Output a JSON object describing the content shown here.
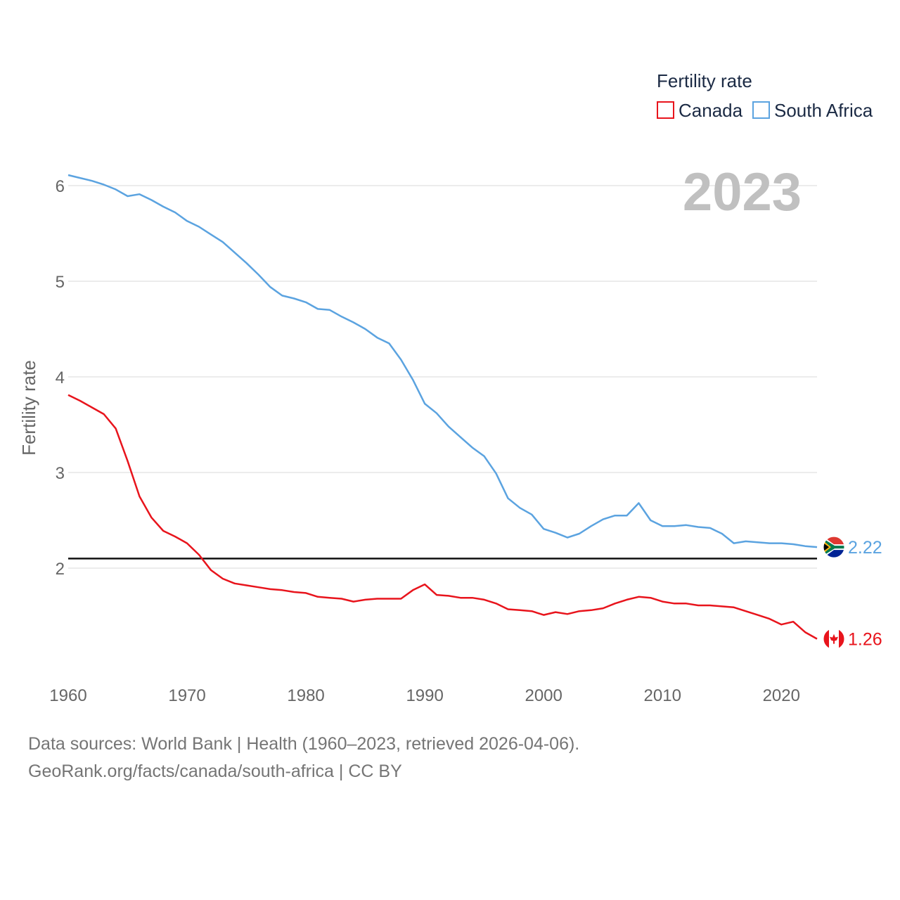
{
  "chart_data": {
    "type": "line",
    "title": "",
    "xlabel": "",
    "ylabel": "Fertility rate",
    "xlim": [
      1960,
      2023
    ],
    "ylim": [
      0.9,
      6.3
    ],
    "y_ticks": [
      2,
      3,
      4,
      5,
      6
    ],
    "x_ticks": [
      1960,
      1970,
      1980,
      1990,
      2000,
      2010,
      2020
    ],
    "grid": true,
    "reference_line": 2.1,
    "year_label": "2023",
    "legend": {
      "title": "Fertility rate",
      "position": "top-right"
    },
    "x": [
      1960,
      1961,
      1962,
      1963,
      1964,
      1965,
      1966,
      1967,
      1968,
      1969,
      1970,
      1971,
      1972,
      1973,
      1974,
      1975,
      1976,
      1977,
      1978,
      1979,
      1980,
      1981,
      1982,
      1983,
      1984,
      1985,
      1986,
      1987,
      1988,
      1989,
      1990,
      1991,
      1992,
      1993,
      1994,
      1995,
      1996,
      1997,
      1998,
      1999,
      2000,
      2001,
      2002,
      2003,
      2004,
      2005,
      2006,
      2007,
      2008,
      2009,
      2010,
      2011,
      2012,
      2013,
      2014,
      2015,
      2016,
      2017,
      2018,
      2019,
      2020,
      2021,
      2022,
      2023
    ],
    "series": [
      {
        "name": "Canada",
        "color": "#e8141c",
        "end_label": "1.26",
        "values": [
          3.81,
          3.75,
          3.68,
          3.61,
          3.46,
          3.12,
          2.75,
          2.53,
          2.39,
          2.33,
          2.26,
          2.14,
          1.98,
          1.89,
          1.84,
          1.82,
          1.8,
          1.78,
          1.77,
          1.75,
          1.74,
          1.7,
          1.69,
          1.68,
          1.65,
          1.67,
          1.68,
          1.68,
          1.68,
          1.77,
          1.83,
          1.72,
          1.71,
          1.69,
          1.69,
          1.67,
          1.63,
          1.57,
          1.56,
          1.55,
          1.51,
          1.54,
          1.52,
          1.55,
          1.56,
          1.58,
          1.63,
          1.67,
          1.7,
          1.69,
          1.65,
          1.63,
          1.63,
          1.61,
          1.61,
          1.6,
          1.59,
          1.55,
          1.51,
          1.47,
          1.41,
          1.44,
          1.33,
          1.26
        ]
      },
      {
        "name": "South Africa",
        "color": "#5ba3e0",
        "end_label": "2.22",
        "values": [
          6.11,
          6.08,
          6.05,
          6.01,
          5.96,
          5.89,
          5.91,
          5.85,
          5.78,
          5.72,
          5.63,
          5.57,
          5.49,
          5.41,
          5.3,
          5.19,
          5.07,
          4.94,
          4.85,
          4.82,
          4.78,
          4.71,
          4.7,
          4.63,
          4.57,
          4.5,
          4.41,
          4.35,
          4.18,
          3.97,
          3.72,
          3.62,
          3.48,
          3.37,
          3.26,
          3.17,
          2.99,
          2.73,
          2.63,
          2.56,
          2.41,
          2.37,
          2.32,
          2.36,
          2.44,
          2.51,
          2.55,
          2.55,
          2.68,
          2.5,
          2.44,
          2.44,
          2.45,
          2.43,
          2.42,
          2.36,
          2.26,
          2.28,
          2.27,
          2.26,
          2.26,
          2.25,
          2.23,
          2.22
        ]
      }
    ]
  },
  "footer": {
    "line1": "Data sources: World Bank | Health (1960–2023, retrieved 2026-04-06).",
    "line2": "GeoRank.org/facts/canada/south-africa | CC BY"
  }
}
